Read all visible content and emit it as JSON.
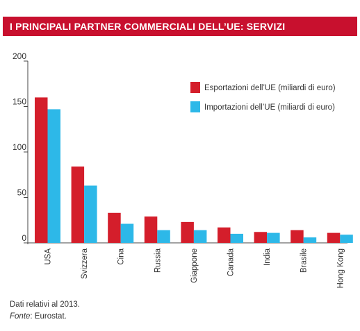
{
  "banner": {
    "title": "I PRINCIPALI PARTNER COMMERCIALI DELL’UE: SERVIZI"
  },
  "footnote": {
    "line1": "Dati relativi al 2013.",
    "source_label": "Fonte",
    "source_text": ": Eurostat."
  },
  "colors": {
    "banner": "#c8102e",
    "exports": "#d41e2b",
    "imports": "#2db8e8"
  },
  "chart_data": {
    "type": "bar",
    "categories": [
      "USA",
      "Svizzera",
      "Cina",
      "Russia",
      "Giappone",
      "Canada",
      "India",
      "Brasile",
      "Hong Kong"
    ],
    "series": [
      {
        "name": "Esportazioni dell’UE (miliardi di euro)",
        "values": [
          160,
          84,
          33,
          29,
          23,
          17,
          12,
          14,
          11
        ]
      },
      {
        "name": "Importazioni dell’UE (miliardi di euro)",
        "values": [
          147,
          63,
          21,
          14,
          14,
          10,
          11,
          6,
          9
        ]
      }
    ],
    "ylim": [
      0,
      200
    ],
    "yticks": [
      0,
      50,
      100,
      150,
      200
    ],
    "legend_position": "top-right",
    "grid": false
  }
}
